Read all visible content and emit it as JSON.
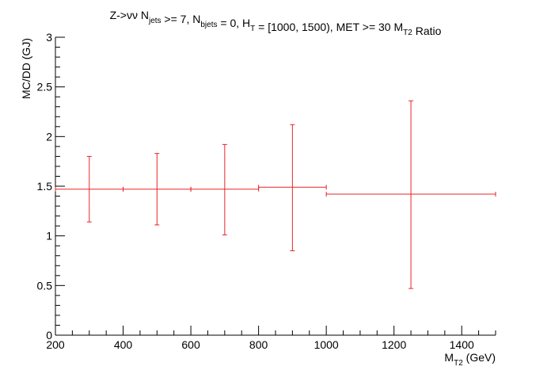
{
  "chart_data": {
    "type": "scatter",
    "title": {
      "parts": [
        {
          "t": "Z->νν N",
          "sub": "jets"
        },
        {
          "t": " >= 7, N",
          "sub": "bjets"
        },
        {
          "t": " = 0, H",
          "sub": "T"
        },
        {
          "t": " = [1000, 1500), MET >= 30 M",
          "sub": "T2"
        },
        {
          "t": " Ratio",
          "sub": ""
        }
      ]
    },
    "xlabel": {
      "main": "M",
      "sub": "T2",
      "rest": " (GeV)"
    },
    "ylabel": "MC/DD (GJ)",
    "xlim": [
      200,
      1500
    ],
    "ylim": [
      0,
      3
    ],
    "x_ticks": [
      200,
      400,
      600,
      800,
      1000,
      1200,
      1400
    ],
    "y_ticks": [
      0,
      0.5,
      1,
      1.5,
      2,
      2.5,
      3
    ],
    "x_tick_labels": [
      "200",
      "400",
      "600",
      "800",
      "1000",
      "1200",
      "1400"
    ],
    "y_tick_labels": [
      "0",
      "0.5",
      "1",
      "1.5",
      "2",
      "2.5",
      "3"
    ],
    "series": [
      {
        "color": "#e8242a",
        "points": [
          {
            "x": 300,
            "xlow": 200,
            "xhigh": 400,
            "y": 1.47,
            "ylow": 1.14,
            "yhigh": 1.8
          },
          {
            "x": 500,
            "xlow": 400,
            "xhigh": 600,
            "y": 1.47,
            "ylow": 1.11,
            "yhigh": 1.83
          },
          {
            "x": 700,
            "xlow": 600,
            "xhigh": 800,
            "y": 1.47,
            "ylow": 1.01,
            "yhigh": 1.92
          },
          {
            "x": 900,
            "xlow": 800,
            "xhigh": 1000,
            "y": 1.49,
            "ylow": 0.85,
            "yhigh": 2.12
          },
          {
            "x": 1250,
            "xlow": 1000,
            "xhigh": 1500,
            "y": 1.42,
            "ylow": 0.47,
            "yhigh": 2.36
          }
        ]
      }
    ],
    "grid": false,
    "legend": "none"
  }
}
